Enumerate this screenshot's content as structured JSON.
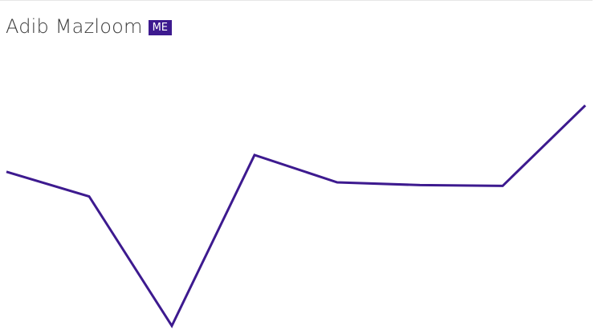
{
  "header": {
    "name": "Adib Mazloom",
    "badge": "ME"
  },
  "colors": {
    "accent": "#3d1a8f",
    "text": "#3b3b3b",
    "rule": "#e6e6e6"
  },
  "chart_data": {
    "type": "line",
    "title": "",
    "xlabel": "",
    "ylabel": "",
    "grid": false,
    "legend": "none",
    "x": [
      0,
      1,
      2,
      3,
      4,
      5,
      6,
      7
    ],
    "values": [
      60.9,
      51.1,
      -0.2,
      67.5,
      56.7,
      55.6,
      55.3,
      87.2
    ],
    "ylim": [
      0,
      100
    ]
  }
}
